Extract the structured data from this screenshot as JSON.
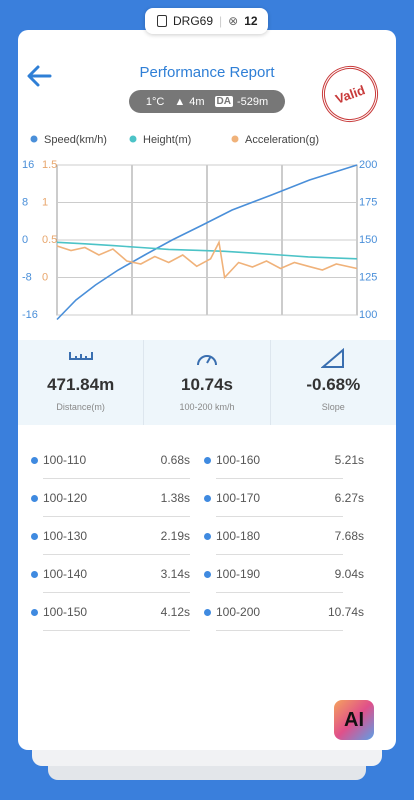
{
  "status": {
    "plate": "DRG69",
    "count": "12"
  },
  "header": {
    "title": "Performance Report",
    "temperature": "1°C",
    "height": "4m",
    "da_label": "DA",
    "da_value": "-529m",
    "stamp": "Valid"
  },
  "chart": {
    "type": "line",
    "ylim": [
      -16,
      16
    ],
    "yticks": [
      16,
      8,
      0,
      -8,
      -16
    ],
    "y2lim": [
      100,
      200
    ],
    "y2ticks": [
      200,
      175,
      150,
      125,
      100
    ],
    "y3lim": [
      -0.5,
      1.5
    ],
    "y3ticks": [
      1.5,
      1,
      0.5,
      0
    ],
    "xlim": [
      0,
      10.74
    ],
    "grid": true,
    "series": [
      {
        "name": "Speed(km/h)",
        "color": "#4a8fd9",
        "axis": "y2",
        "x": [
          0,
          0.68,
          1.38,
          2.19,
          3.14,
          4.12,
          5.21,
          6.27,
          7.68,
          9.04,
          10.74
        ],
        "values": [
          97,
          110,
          120,
          130,
          140,
          150,
          160,
          170,
          180,
          190,
          200
        ]
      },
      {
        "name": "Height(m)",
        "color": "#4cc3c7",
        "axis": "y",
        "x": [
          0,
          1,
          2,
          3,
          4,
          5,
          6,
          7,
          8,
          9,
          10.74
        ],
        "values": [
          -0.5,
          -0.8,
          -1.2,
          -1.6,
          -2,
          -2.2,
          -2.4,
          -2.8,
          -3.2,
          -3.6,
          -4
        ]
      },
      {
        "name": "Acceleration(g)",
        "color": "#f0b27a",
        "axis": "y3",
        "x": [
          0,
          0.5,
          1,
          1.5,
          2,
          2.5,
          3,
          3.5,
          4,
          4.5,
          5,
          5.5,
          5.8,
          6,
          6.5,
          7,
          7.5,
          8,
          8.5,
          9,
          9.5,
          10,
          10.74
        ],
        "values": [
          0.42,
          0.36,
          0.4,
          0.3,
          0.38,
          0.22,
          0.18,
          0.28,
          0.2,
          0.3,
          0.15,
          0.25,
          0.47,
          0.0,
          0.2,
          0.14,
          0.22,
          0.12,
          0.2,
          0.15,
          0.1,
          0.18,
          0.12
        ]
      }
    ]
  },
  "stats": [
    {
      "value": "471.84m",
      "label": "Distance(m)"
    },
    {
      "value": "10.74s",
      "label": "100-200 km/h"
    },
    {
      "value": "-0.68%",
      "label": "Slope"
    }
  ],
  "splits": [
    [
      "100-110",
      "0.68s"
    ],
    [
      "100-160",
      "5.21s"
    ],
    [
      "100-120",
      "1.38s"
    ],
    [
      "100-170",
      "6.27s"
    ],
    [
      "100-130",
      "2.19s"
    ],
    [
      "100-180",
      "7.68s"
    ],
    [
      "100-140",
      "3.14s"
    ],
    [
      "100-190",
      "9.04s"
    ],
    [
      "100-150",
      "4.12s"
    ],
    [
      "100-200",
      "10.74s"
    ]
  ],
  "ai_button": "AI"
}
